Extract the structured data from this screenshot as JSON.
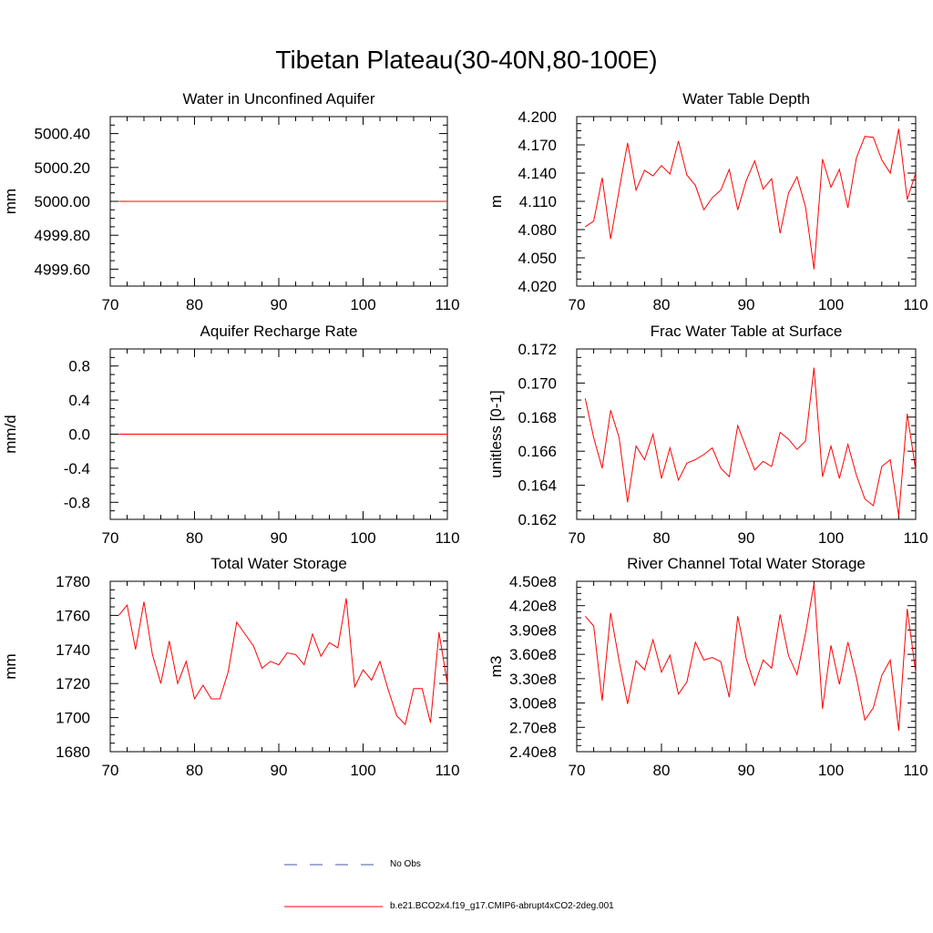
{
  "figure": {
    "title": "Tibetan Plateau(30-40N,80-100E)"
  },
  "legend": {
    "entries": [
      {
        "label": "No Obs",
        "color": "#4a55a8",
        "style": "dashed"
      },
      {
        "label": "b.e21.BCO2x4.f19_g17.CMIP6-abrupt4xCO2-2deg.001",
        "color": "#ff0000",
        "style": "solid"
      }
    ]
  },
  "chart_data": [
    {
      "type": "line",
      "title": "Water in Unconfined Aquifer",
      "ylabel": "mm",
      "xlim": [
        70,
        110
      ],
      "ylim": [
        4999.5,
        5000.5
      ],
      "xticks": [
        "70",
        "80",
        "90",
        "100",
        "110"
      ],
      "yticks": [
        4999.6,
        4999.8,
        5000.0,
        5000.2,
        5000.4
      ],
      "ytick_labels": [
        "4999.60",
        "4999.80",
        "5000.00",
        "5000.20",
        "5000.40"
      ],
      "series": [
        {
          "color": "#ff0000",
          "x": [
            71,
            110
          ],
          "values": [
            5000.0,
            5000.0
          ]
        }
      ]
    },
    {
      "type": "line",
      "title": "Water Table Depth",
      "ylabel": "m",
      "xlim": [
        70,
        110
      ],
      "ylim": [
        4.02,
        4.2
      ],
      "xticks": [
        "70",
        "80",
        "90",
        "100",
        "110"
      ],
      "yticks": [
        4.02,
        4.05,
        4.08,
        4.11,
        4.14,
        4.17,
        4.2
      ],
      "ytick_labels": [
        "4.020",
        "4.050",
        "4.080",
        "4.110",
        "4.140",
        "4.170",
        "4.200"
      ],
      "series": [
        {
          "color": "#ff0000",
          "x": [
            71,
            72,
            73,
            74,
            75,
            76,
            77,
            78,
            79,
            80,
            81,
            82,
            83,
            84,
            85,
            86,
            87,
            88,
            89,
            90,
            91,
            92,
            93,
            94,
            95,
            96,
            97,
            98,
            99,
            100,
            101,
            102,
            103,
            104,
            105,
            106,
            107,
            108,
            109,
            110
          ],
          "values": [
            4.083,
            4.089,
            4.135,
            4.07,
            4.122,
            4.172,
            4.122,
            4.143,
            4.137,
            4.148,
            4.139,
            4.174,
            4.138,
            4.127,
            4.101,
            4.114,
            4.122,
            4.144,
            4.101,
            4.132,
            4.153,
            4.123,
            4.134,
            4.076,
            4.119,
            4.136,
            4.104,
            4.038,
            4.155,
            4.125,
            4.144,
            4.103,
            4.156,
            4.179,
            4.178,
            4.154,
            4.14,
            4.187,
            4.112,
            4.14
          ]
        }
      ]
    },
    {
      "type": "line",
      "title": "Aquifer Recharge Rate",
      "ylabel": "mm/d",
      "xlim": [
        70,
        110
      ],
      "ylim": [
        -1.0,
        1.0
      ],
      "xticks": [
        "70",
        "80",
        "90",
        "100",
        "110"
      ],
      "yticks": [
        -0.8,
        -0.4,
        0.0,
        0.4,
        0.8
      ],
      "ytick_labels": [
        "-0.8",
        "-0.4",
        "0.0",
        "0.4",
        "0.8"
      ],
      "series": [
        {
          "color": "#ff0000",
          "x": [
            71,
            110
          ],
          "values": [
            0.0,
            0.0
          ]
        }
      ]
    },
    {
      "type": "line",
      "title": "Frac Water Table at Surface",
      "ylabel": "unitless [0-1]",
      "xlim": [
        70,
        110
      ],
      "ylim": [
        0.162,
        0.172
      ],
      "xticks": [
        "70",
        "80",
        "90",
        "100",
        "110"
      ],
      "yticks": [
        0.162,
        0.164,
        0.166,
        0.168,
        0.17,
        0.172
      ],
      "ytick_labels": [
        "0.162",
        "0.164",
        "0.166",
        "0.168",
        "0.170",
        "0.172"
      ],
      "series": [
        {
          "color": "#ff0000",
          "x": [
            71,
            72,
            73,
            74,
            75,
            76,
            77,
            78,
            79,
            80,
            81,
            82,
            83,
            84,
            85,
            86,
            87,
            88,
            89,
            90,
            91,
            92,
            93,
            94,
            95,
            96,
            97,
            98,
            99,
            100,
            101,
            102,
            103,
            104,
            105,
            106,
            107,
            108,
            109,
            110
          ],
          "values": [
            0.1691,
            0.1668,
            0.165,
            0.1684,
            0.1668,
            0.163,
            0.1663,
            0.1655,
            0.167,
            0.1644,
            0.1662,
            0.1643,
            0.1653,
            0.1655,
            0.1658,
            0.1662,
            0.165,
            0.1645,
            0.1675,
            0.1662,
            0.1649,
            0.1654,
            0.1651,
            0.1671,
            0.1667,
            0.1661,
            0.1666,
            0.1709,
            0.1645,
            0.1663,
            0.1644,
            0.1664,
            0.1646,
            0.1632,
            0.1628,
            0.1651,
            0.1655,
            0.1622,
            0.1682,
            0.1649
          ]
        }
      ]
    },
    {
      "type": "line",
      "title": "Total Water Storage",
      "ylabel": "mm",
      "xlim": [
        70,
        110
      ],
      "ylim": [
        1680,
        1780
      ],
      "xticks": [
        "70",
        "80",
        "90",
        "100",
        "110"
      ],
      "yticks": [
        1680,
        1700,
        1720,
        1740,
        1760,
        1780
      ],
      "ytick_labels": [
        "1680",
        "1700",
        "1720",
        "1740",
        "1760",
        "1780"
      ],
      "series": [
        {
          "color": "#ff0000",
          "x": [
            71,
            72,
            73,
            74,
            75,
            76,
            77,
            78,
            79,
            80,
            81,
            82,
            83,
            84,
            85,
            86,
            87,
            88,
            89,
            90,
            91,
            92,
            93,
            94,
            95,
            96,
            97,
            98,
            99,
            100,
            101,
            102,
            103,
            104,
            105,
            106,
            107,
            108,
            109,
            110
          ],
          "values": [
            1760,
            1766,
            1740,
            1768,
            1737,
            1720,
            1745,
            1720,
            1733,
            1711,
            1719,
            1711,
            1711,
            1727,
            1756,
            1749,
            1742,
            1729,
            1733,
            1731,
            1738,
            1737,
            1731,
            1749,
            1736,
            1744,
            1741,
            1770,
            1718,
            1728,
            1722,
            1733,
            1716,
            1701,
            1696,
            1717,
            1717,
            1697,
            1750,
            1720
          ]
        }
      ]
    },
    {
      "type": "line",
      "title": "River Channel Total Water Storage",
      "ylabel": "m3",
      "xlim": [
        70,
        110
      ],
      "ylim": [
        240000000.0,
        450000000.0
      ],
      "xticks": [
        "70",
        "80",
        "90",
        "100",
        "110"
      ],
      "yticks": [
        240000000.0,
        270000000.0,
        300000000.0,
        330000000.0,
        360000000.0,
        390000000.0,
        420000000.0,
        450000000.0
      ],
      "ytick_labels": [
        "2.40e8",
        "2.70e8",
        "3.00e8",
        "3.30e8",
        "3.60e8",
        "3.90e8",
        "4.20e8",
        "4.50e8"
      ],
      "series": [
        {
          "color": "#ff0000",
          "x": [
            71,
            72,
            73,
            74,
            75,
            76,
            77,
            78,
            79,
            80,
            81,
            82,
            83,
            84,
            85,
            86,
            87,
            88,
            89,
            90,
            91,
            92,
            93,
            94,
            95,
            96,
            97,
            98,
            99,
            100,
            101,
            102,
            103,
            104,
            105,
            106,
            107,
            108,
            109,
            110
          ],
          "values": [
            407000000.0,
            395000000.0,
            303000000.0,
            411000000.0,
            352000000.0,
            299000000.0,
            352000000.0,
            341000000.0,
            378000000.0,
            338000000.0,
            359000000.0,
            311000000.0,
            326000000.0,
            375000000.0,
            353000000.0,
            356000000.0,
            351000000.0,
            307000000.0,
            407000000.0,
            355000000.0,
            322000000.0,
            353000000.0,
            343000000.0,
            409000000.0,
            358000000.0,
            335000000.0,
            386000000.0,
            447000000.0,
            293000000.0,
            371000000.0,
            323000000.0,
            375000000.0,
            332000000.0,
            279000000.0,
            294000000.0,
            334000000.0,
            353000000.0,
            266000000.0,
            416000000.0,
            338000000.0
          ]
        }
      ]
    }
  ]
}
